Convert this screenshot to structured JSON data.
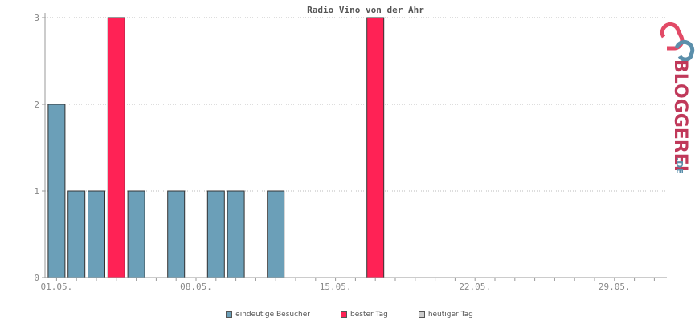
{
  "chart_data": {
    "type": "bar",
    "title": "Radio Vino von der Ahr",
    "xlabel": "",
    "ylabel": "",
    "ylim": [
      0,
      3
    ],
    "yticks": [
      "0",
      "1",
      "2",
      "3"
    ],
    "days": 31,
    "xtick_labels": [
      {
        "day": 1,
        "label": "01.05."
      },
      {
        "day": 8,
        "label": "08.05."
      },
      {
        "day": 15,
        "label": "15.05."
      },
      {
        "day": 22,
        "label": "22.05."
      },
      {
        "day": 29,
        "label": "29.05."
      }
    ],
    "series": [
      {
        "name": "eindeutige Besucher",
        "color": "#6b9fb8",
        "values": [
          2,
          1,
          1,
          3,
          1,
          0,
          1,
          0,
          1,
          1,
          0,
          1,
          0,
          0,
          0,
          0,
          3,
          0,
          0,
          0,
          0,
          0,
          0,
          0,
          0,
          0,
          0,
          0,
          0,
          0,
          0
        ]
      }
    ],
    "best_days": [
      4,
      17
    ],
    "grid": true
  },
  "legend": {
    "items": [
      {
        "label": "eindeutige Besucher",
        "color": "#6b9fb8"
      },
      {
        "label": "bester Tag",
        "color": "#ff2255"
      },
      {
        "label": "heutiger Tag",
        "color": "#cccccc"
      }
    ]
  },
  "logo": {
    "text_main": "BLOGGEREI",
    "text_suffix": ".DE",
    "color_main": "#c0395a",
    "color_suffix": "#5b8fab"
  }
}
